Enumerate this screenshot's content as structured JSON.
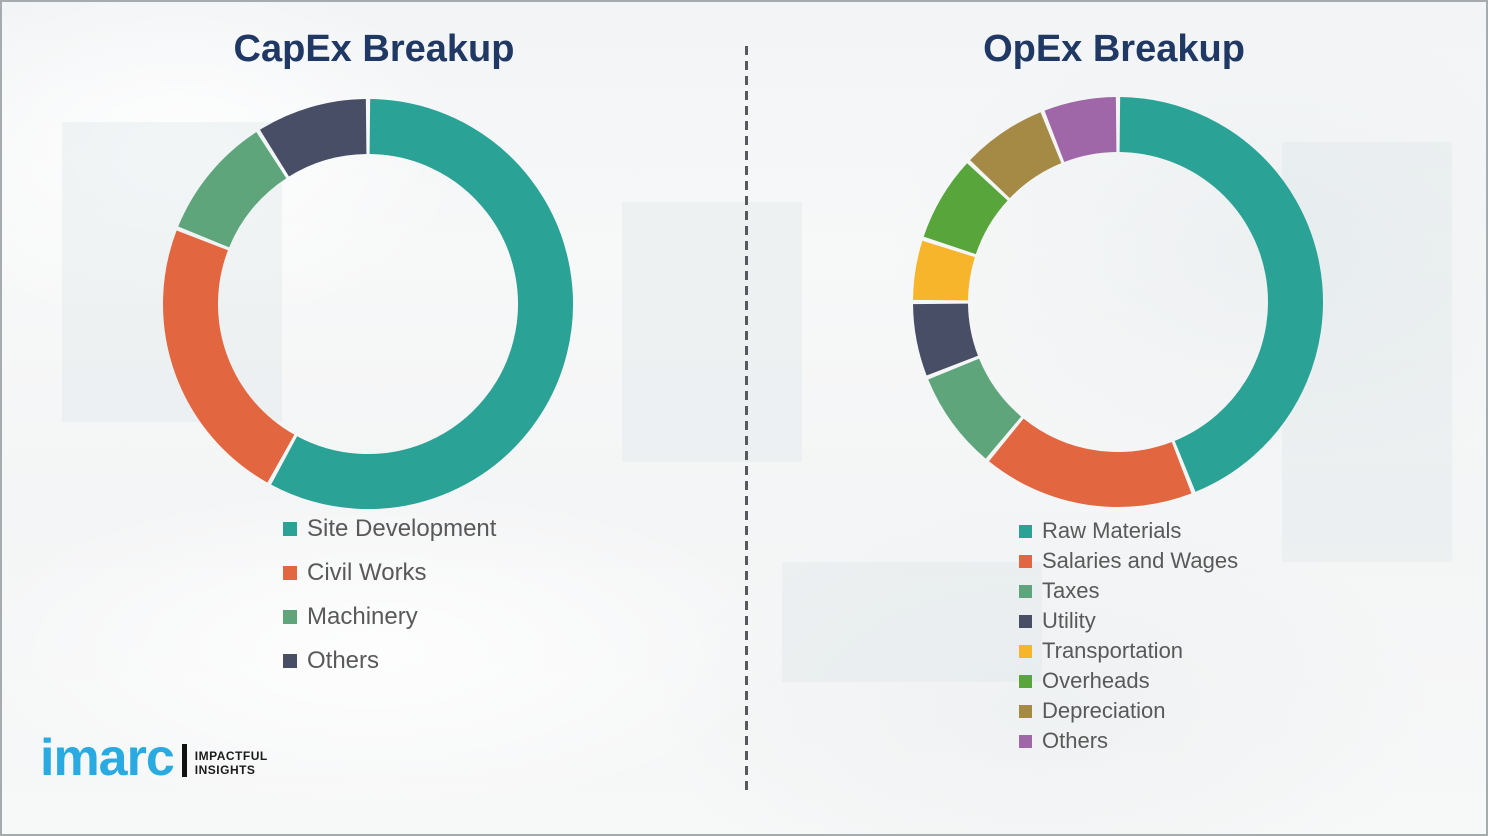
{
  "theme": {
    "title_color": "#203864",
    "legend_text_color": "#595959",
    "divider_color": "#565A5E",
    "border_color": "#A6ABB0",
    "background_color": "#F6F7F8"
  },
  "chart_data": [
    {
      "type": "pie",
      "subtype": "donut",
      "title": "CapEx Breakup",
      "start_angle_deg": 0,
      "direction": "clockwise",
      "legend_position": "below-left",
      "series": [
        {
          "label": "Site Development",
          "value": 58,
          "color": "#2AA396"
        },
        {
          "label": "Civil Works",
          "value": 23,
          "color": "#E2663F"
        },
        {
          "label": "Machinery",
          "value": 10,
          "color": "#5EA57B"
        },
        {
          "label": "Others",
          "value": 9,
          "color": "#494E67"
        }
      ]
    },
    {
      "type": "pie",
      "subtype": "donut",
      "title": "OpEx Breakup",
      "start_angle_deg": 0,
      "direction": "clockwise",
      "legend_position": "below-left",
      "series": [
        {
          "label": "Raw Materials",
          "value": 44,
          "color": "#2AA396"
        },
        {
          "label": "Salaries and Wages",
          "value": 17,
          "color": "#E2663F"
        },
        {
          "label": "Taxes",
          "value": 8,
          "color": "#5EA57B"
        },
        {
          "label": "Utility",
          "value": 6,
          "color": "#494E67"
        },
        {
          "label": "Transportation",
          "value": 5,
          "color": "#F6B52A"
        },
        {
          "label": "Overheads",
          "value": 7,
          "color": "#57A53B"
        },
        {
          "label": "Depreciation",
          "value": 7,
          "color": "#A58A45"
        },
        {
          "label": "Others",
          "value": 6,
          "color": "#A067A8"
        }
      ]
    }
  ],
  "logo": {
    "brand": "imarc",
    "tagline_line1": "IMPACTFUL",
    "tagline_line2": "INSIGHTS",
    "brand_color": "#29ABE2",
    "separator_color": "#111111",
    "tagline_color": "#1A1A1A"
  }
}
